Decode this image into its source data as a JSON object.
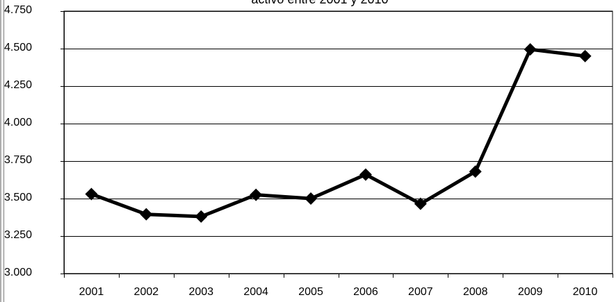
{
  "chart_data": {
    "type": "line",
    "title": "activo entre 2001 y 2010",
    "xlabel": "",
    "ylabel": "",
    "ylim": [
      3000,
      4750
    ],
    "yticks": [
      "4.750",
      "4.500",
      "4.250",
      "4.000",
      "3.750",
      "3.500",
      "3.250",
      "3.000"
    ],
    "ytick_values": [
      4750,
      4500,
      4250,
      4000,
      3750,
      3500,
      3250,
      3000
    ],
    "categories": [
      "2001",
      "2002",
      "2003",
      "2004",
      "2005",
      "2006",
      "2007",
      "2008",
      "2009",
      "2010"
    ],
    "series": [
      {
        "values": [
          3530,
          3395,
          3380,
          3525,
          3500,
          3660,
          3465,
          3680,
          4495,
          4450
        ],
        "color": "#000000",
        "marker": "diamond"
      }
    ],
    "grid": true,
    "legend": "none"
  }
}
